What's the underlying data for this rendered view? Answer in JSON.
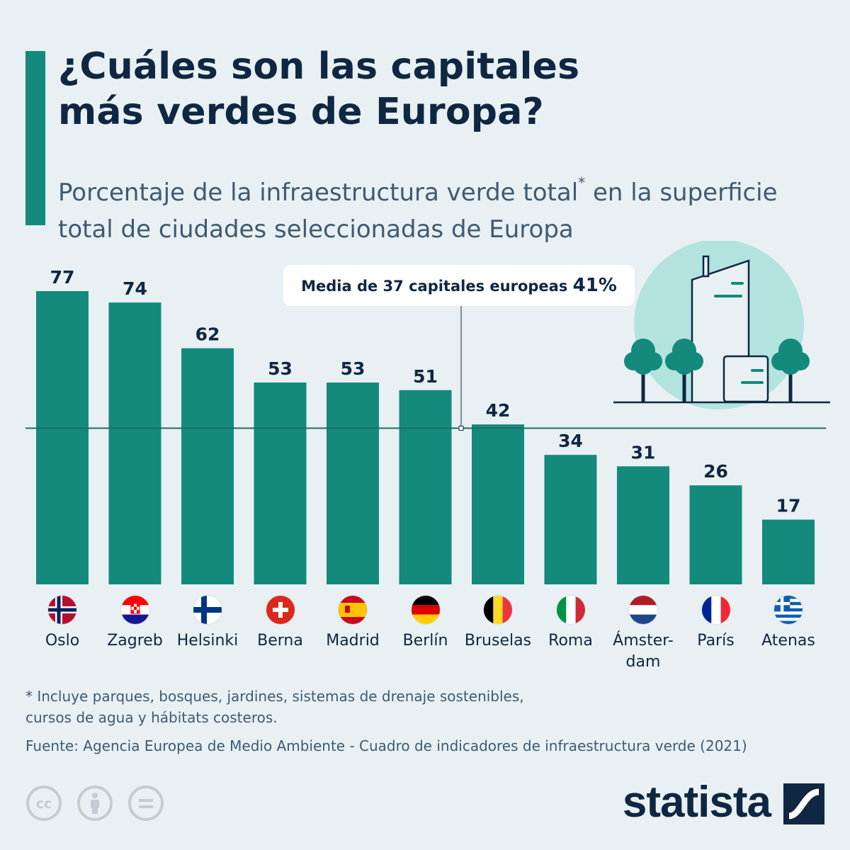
{
  "header": {
    "title": "¿Cuáles son las capitales\nmás verdes de Europa?",
    "subtitle_part1": "Porcentaje de la infraestructura verde total",
    "subtitle_mark": "*",
    "subtitle_part2": " en la superficie\ntotal de ciudades seleccionadas de Europa"
  },
  "colors": {
    "bar": "#138a7c",
    "title": "#0f2742",
    "text": "#3f5a72",
    "background": "#e8f0f3",
    "illustration_circle": "#b3e3df"
  },
  "chart_data": {
    "type": "bar",
    "categories": [
      "Oslo",
      "Zagreb",
      "Helsinki",
      "Berna",
      "Madrid",
      "Berlín",
      "Bruselas",
      "Roma",
      "Ámster-\ndam",
      "París",
      "Atenas"
    ],
    "values": [
      77,
      74,
      62,
      53,
      53,
      51,
      42,
      34,
      31,
      26,
      17
    ],
    "flags": [
      "flag-norway-icon",
      "flag-croatia-icon",
      "flag-finland-icon",
      "flag-switzerland-icon",
      "flag-spain-icon",
      "flag-germany-icon",
      "flag-belgium-icon",
      "flag-italy-icon",
      "flag-netherlands-icon",
      "flag-france-icon",
      "flag-greece-icon"
    ],
    "reference_line": {
      "value": 41,
      "label": "Media de 37 capitales europeas",
      "value_label": "41%"
    },
    "ylim": [
      0,
      77
    ],
    "grid": false
  },
  "footer": {
    "footnote": "* Incluye parques, bosques, jardines, sistemas de drenaje sostenibles,\n   cursos de agua y hábitats costeros.",
    "source": "Fuente: Agencia Europea de Medio Ambiente - Cuadro de indicadores de infraestructura verde (2021)",
    "license_icons": [
      "cc-icon",
      "attribution-icon",
      "no-derivatives-icon"
    ],
    "brand": "statista"
  }
}
